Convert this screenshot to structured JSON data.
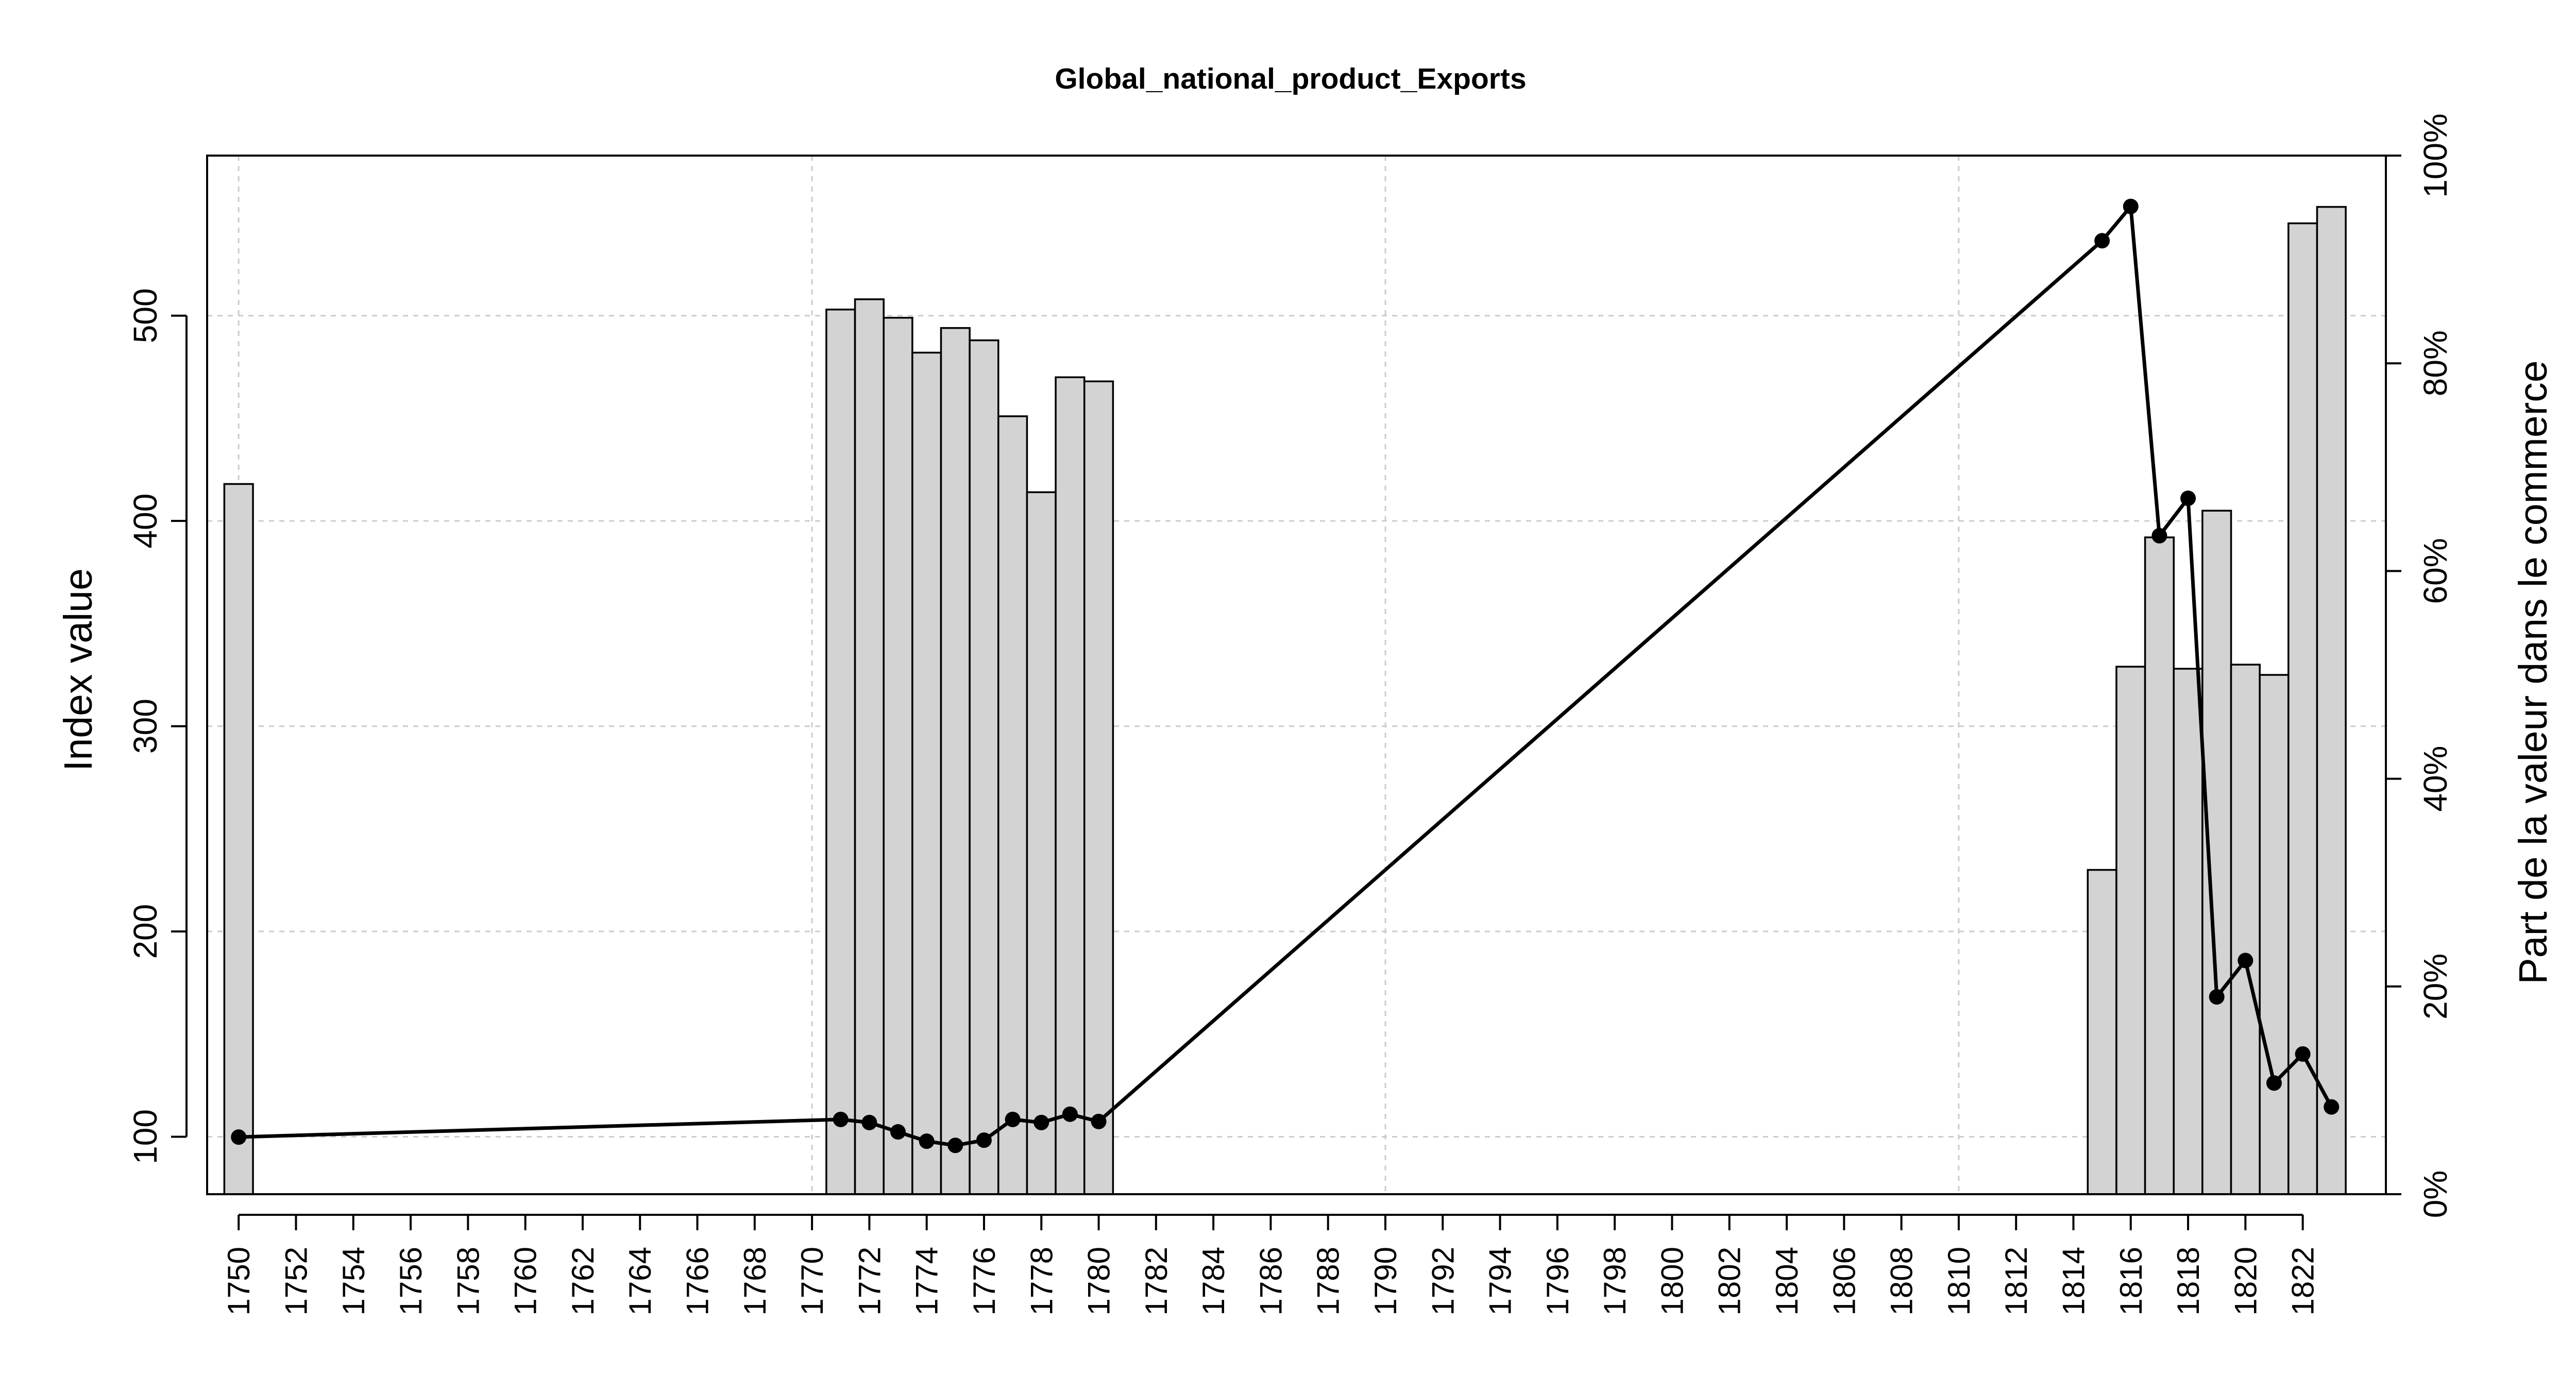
{
  "chart_data": {
    "type": "bar",
    "title": "Global_national_product_Exports",
    "ylabel": "Index value",
    "y2label": "Part de la valeur dans le commerce",
    "xlim": [
      1748.9,
      1824.9
    ],
    "ylim": [
      72,
      578
    ],
    "y2lim": [
      0,
      1
    ],
    "grid": true,
    "yticks": [
      100,
      200,
      300,
      400,
      500
    ],
    "y2ticks": [
      "0%",
      "20%",
      "40%",
      "60%",
      "80%",
      "100%"
    ],
    "xticks": [
      1750,
      1752,
      1754,
      1756,
      1758,
      1760,
      1762,
      1764,
      1766,
      1768,
      1770,
      1772,
      1774,
      1776,
      1778,
      1780,
      1782,
      1784,
      1786,
      1788,
      1790,
      1792,
      1794,
      1796,
      1798,
      1800,
      1802,
      1804,
      1806,
      1808,
      1810,
      1812,
      1814,
      1816,
      1818,
      1820,
      1822
    ],
    "colors": {
      "bars": "#d3d3d3",
      "line": "#000000",
      "grid": "#cccccc"
    },
    "bars": [
      {
        "x": 1750,
        "y": 418
      },
      {
        "x": 1771,
        "y": 503
      },
      {
        "x": 1772,
        "y": 508
      },
      {
        "x": 1773,
        "y": 499
      },
      {
        "x": 1774,
        "y": 482
      },
      {
        "x": 1775,
        "y": 494
      },
      {
        "x": 1776,
        "y": 488
      },
      {
        "x": 1777,
        "y": 451
      },
      {
        "x": 1778,
        "y": 414
      },
      {
        "x": 1779,
        "y": 470
      },
      {
        "x": 1780,
        "y": 468
      },
      {
        "x": 1815,
        "y": 230
      },
      {
        "x": 1816,
        "y": 329
      },
      {
        "x": 1817,
        "y": 392
      },
      {
        "x": 1818,
        "y": 328
      },
      {
        "x": 1819,
        "y": 405
      },
      {
        "x": 1820,
        "y": 330
      },
      {
        "x": 1821,
        "y": 325
      },
      {
        "x": 1822,
        "y": 545
      },
      {
        "x": 1823,
        "y": 553
      }
    ],
    "share_series": [
      {
        "x": 1750,
        "y": 0.055
      },
      {
        "x": 1771,
        "y": 0.072
      },
      {
        "x": 1772,
        "y": 0.069
      },
      {
        "x": 1773,
        "y": 0.06
      },
      {
        "x": 1774,
        "y": 0.051
      },
      {
        "x": 1775,
        "y": 0.047
      },
      {
        "x": 1776,
        "y": 0.052
      },
      {
        "x": 1777,
        "y": 0.072
      },
      {
        "x": 1778,
        "y": 0.069
      },
      {
        "x": 1779,
        "y": 0.077
      },
      {
        "x": 1780,
        "y": 0.07
      },
      {
        "x": 1815,
        "y": 0.918
      },
      {
        "x": 1816,
        "y": 0.951
      },
      {
        "x": 1817,
        "y": 0.634
      },
      {
        "x": 1818,
        "y": 0.67
      },
      {
        "x": 1819,
        "y": 0.19
      },
      {
        "x": 1820,
        "y": 0.225
      },
      {
        "x": 1821,
        "y": 0.107
      },
      {
        "x": 1822,
        "y": 0.135
      },
      {
        "x": 1823,
        "y": 0.084
      }
    ]
  }
}
